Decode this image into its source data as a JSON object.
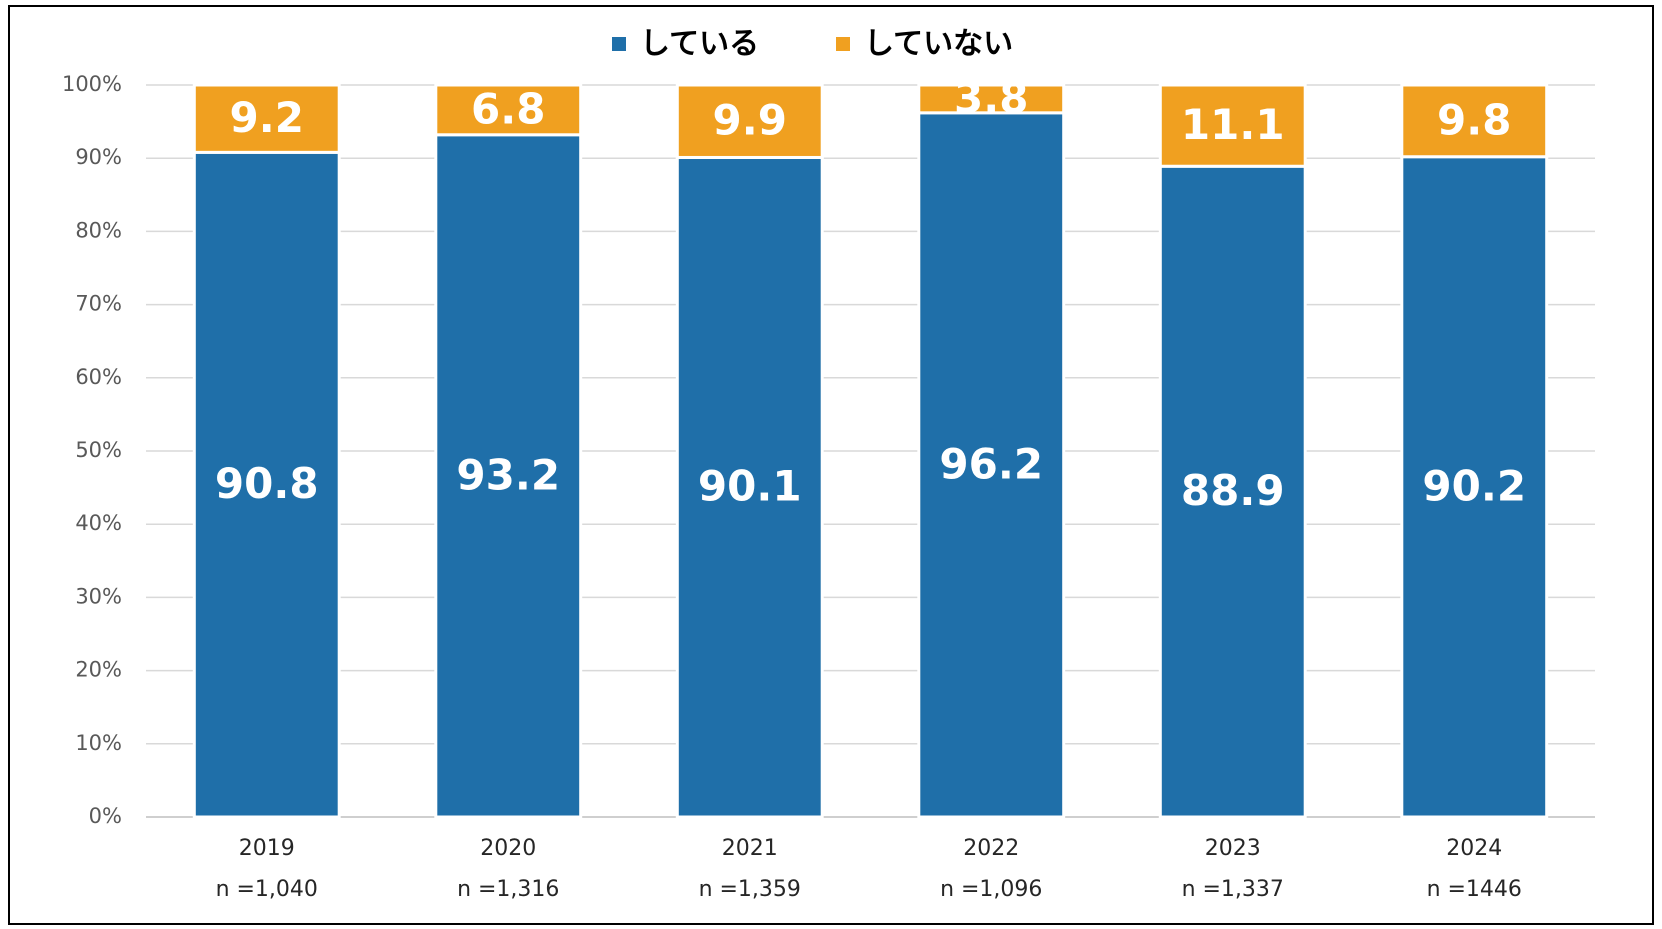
{
  "chart_data": {
    "type": "stacked_bar",
    "categories": [
      "2019",
      "2020",
      "2021",
      "2022",
      "2023",
      "2024"
    ],
    "sample_sizes": [
      "n =1,040",
      "n =1,316",
      "n =1,359",
      "n =1,096",
      "n =1,337",
      "n =1446"
    ],
    "series": [
      {
        "name": "している",
        "color": "#1f6fa9",
        "values": [
          90.8,
          93.2,
          90.1,
          96.2,
          88.9,
          90.2
        ]
      },
      {
        "name": "していない",
        "color": "#f0a020",
        "values": [
          9.2,
          6.8,
          9.9,
          3.8,
          11.1,
          9.8
        ]
      }
    ],
    "ylim": [
      0,
      100
    ],
    "yticks": [
      {
        "value": 0,
        "label": "0%"
      },
      {
        "value": 10,
        "label": "10%"
      },
      {
        "value": 20,
        "label": "20%"
      },
      {
        "value": 30,
        "label": "30%"
      },
      {
        "value": 40,
        "label": "40%"
      },
      {
        "value": 50,
        "label": "50%"
      },
      {
        "value": 60,
        "label": "60%"
      },
      {
        "value": 70,
        "label": "70%"
      },
      {
        "value": 80,
        "label": "80%"
      },
      {
        "value": 90,
        "label": "90%"
      },
      {
        "value": 100,
        "label": "100%"
      }
    ],
    "grid": true,
    "legend": "top"
  }
}
